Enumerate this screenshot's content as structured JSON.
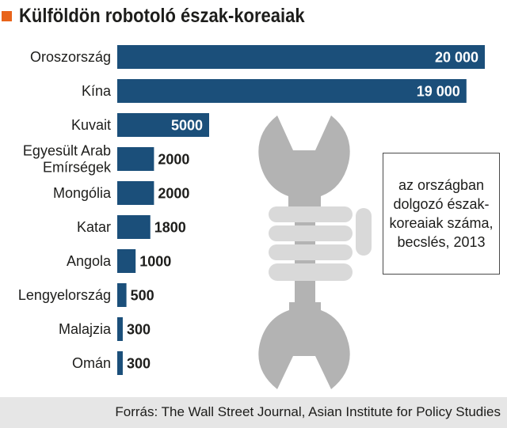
{
  "title": "Külföldön robotoló észak-koreaiak",
  "note": "az országban dolgozó észak-koreaiak száma, becslés, 2013",
  "source": "Forrás: The Wall Street Journal, Asian Institute for Policy Studies",
  "colors": {
    "bar": "#1b4f7a",
    "accent": "#e8641b",
    "wrench": "#b3b3b3",
    "fist": "#d9d9d9",
    "footer_bg": "#e6e6e6"
  },
  "illustration": "wrench-and-fist-icon",
  "chart_data": {
    "type": "bar",
    "orientation": "horizontal",
    "title": "Külföldön robotoló észak-koreaiak",
    "categories": [
      "Oroszország",
      "Kína",
      "Kuvait",
      "Egyesült Arab Emírségek",
      "Mongólia",
      "Katar",
      "Angola",
      "Lengyelország",
      "Malajzia",
      "Omán"
    ],
    "category_lines": [
      [
        "Oroszország"
      ],
      [
        "Kína"
      ],
      [
        "Kuvait"
      ],
      [
        "Egyesült Arab",
        "Emírségek"
      ],
      [
        "Mongólia"
      ],
      [
        "Katar"
      ],
      [
        "Angola"
      ],
      [
        "Lengyelország"
      ],
      [
        "Malajzia"
      ],
      [
        "Omán"
      ]
    ],
    "values": [
      20000,
      19000,
      5000,
      2000,
      2000,
      1800,
      1000,
      500,
      300,
      300
    ],
    "value_labels": [
      "20 000",
      "19 000",
      "5000",
      "2000",
      "2000",
      "1800",
      "1000",
      "500",
      "300",
      "300"
    ],
    "xlim": [
      0,
      20000
    ],
    "grid": false,
    "legend": "none"
  }
}
